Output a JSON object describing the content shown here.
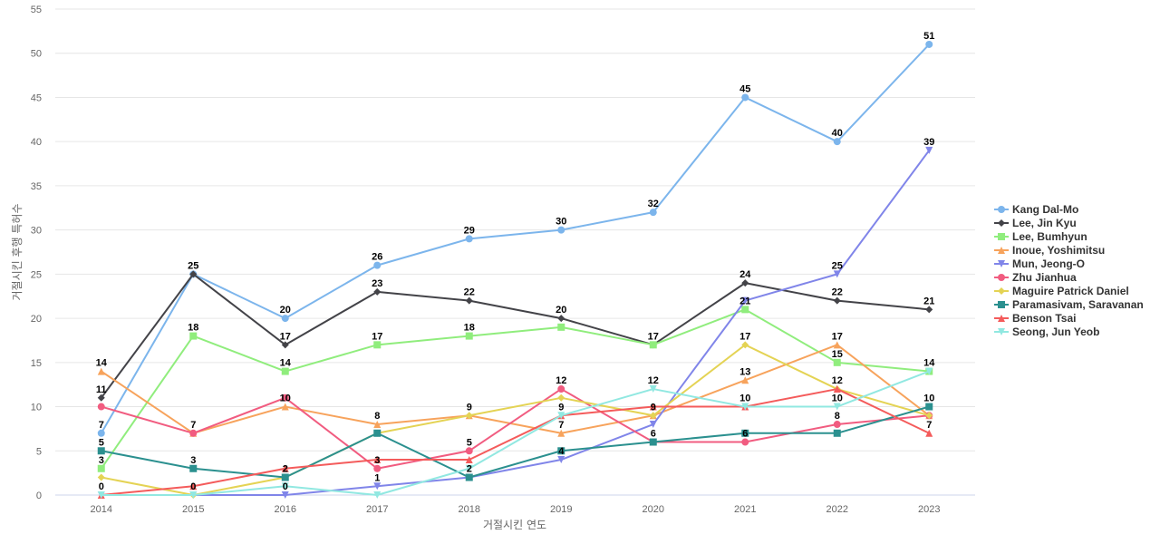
{
  "chart_data": {
    "type": "line",
    "title": "",
    "xlabel": "거절시킨 연도",
    "ylabel": "거절시킨 후행 특허수",
    "x": [
      "2014",
      "2015",
      "2016",
      "2017",
      "2018",
      "2019",
      "2020",
      "2021",
      "2022",
      "2023"
    ],
    "ylim": [
      0,
      55
    ],
    "yticks": [
      0,
      5,
      10,
      15,
      20,
      25,
      30,
      35,
      40,
      45,
      50,
      55
    ],
    "grid": true,
    "legend_position": "right",
    "series": [
      {
        "name": "Kang Dal-Mo",
        "color": "#7cb5ec",
        "marker": "circle",
        "values": [
          7,
          25,
          20,
          26,
          29,
          30,
          32,
          45,
          40,
          51
        ]
      },
      {
        "name": "Lee, Jin Kyu",
        "color": "#434348",
        "marker": "diamond",
        "values": [
          11,
          25,
          17,
          23,
          22,
          20,
          17,
          24,
          22,
          21
        ]
      },
      {
        "name": "Lee, Bumhyun",
        "color": "#90ed7d",
        "marker": "square",
        "values": [
          3,
          18,
          14,
          17,
          18,
          19,
          17,
          21,
          15,
          14
        ]
      },
      {
        "name": "Inoue, Yoshimitsu",
        "color": "#f7a35c",
        "marker": "triangle",
        "values": [
          14,
          7,
          10,
          8,
          9,
          7,
          9,
          13,
          17,
          9
        ]
      },
      {
        "name": "Mun, Jeong-O",
        "color": "#8085e9",
        "marker": "triangle-down",
        "values": [
          0,
          0,
          0,
          1,
          2,
          4,
          8,
          22,
          25,
          39
        ]
      },
      {
        "name": "Zhu Jianhua",
        "color": "#f15c80",
        "marker": "circle",
        "values": [
          10,
          7,
          11,
          3,
          5,
          12,
          6,
          6,
          8,
          9
        ]
      },
      {
        "name": "Maguire Patrick Daniel",
        "color": "#e4d354",
        "marker": "diamond",
        "values": [
          2,
          0,
          2,
          7,
          9,
          11,
          9,
          17,
          12,
          9
        ]
      },
      {
        "name": "Paramasivam, Saravanan",
        "color": "#2b908f",
        "marker": "square",
        "values": [
          5,
          3,
          2,
          7,
          2,
          5,
          6,
          7,
          7,
          10
        ]
      },
      {
        "name": "Benson Tsai",
        "color": "#f45b5b",
        "marker": "triangle",
        "values": [
          0,
          1,
          3,
          4,
          4,
          9,
          10,
          10,
          12,
          7
        ]
      },
      {
        "name": "Seong, Jun Yeob",
        "color": "#91e8e1",
        "marker": "triangle-down",
        "values": [
          0,
          0,
          1,
          0,
          3,
          9,
          12,
          10,
          10,
          14
        ]
      }
    ],
    "data_labels": [
      {
        "x": "2014",
        "text": "14"
      },
      {
        "x": "2014",
        "text": "11"
      },
      {
        "x": "2014",
        "text": "7"
      },
      {
        "x": "2014",
        "text": "5"
      },
      {
        "x": "2014",
        "text": "3"
      },
      {
        "x": "2014",
        "text": "0"
      },
      {
        "x": "2015",
        "text": "25"
      },
      {
        "x": "2015",
        "text": "18"
      },
      {
        "x": "2015",
        "text": "7"
      },
      {
        "x": "2015",
        "text": "3"
      },
      {
        "x": "2015",
        "text": "0"
      },
      {
        "x": "2016",
        "text": "20"
      },
      {
        "x": "2016",
        "text": "17"
      },
      {
        "x": "2016",
        "text": "14"
      },
      {
        "x": "2016",
        "text": "10"
      },
      {
        "x": "2016",
        "text": "2"
      },
      {
        "x": "2016",
        "text": "0"
      },
      {
        "x": "2017",
        "text": "26"
      },
      {
        "x": "2017",
        "text": "23"
      },
      {
        "x": "2017",
        "text": "17"
      },
      {
        "x": "2017",
        "text": "8"
      },
      {
        "x": "2017",
        "text": "3"
      },
      {
        "x": "2017",
        "text": "1"
      },
      {
        "x": "2018",
        "text": "29"
      },
      {
        "x": "2018",
        "text": "22"
      },
      {
        "x": "2018",
        "text": "18"
      },
      {
        "x": "2018",
        "text": "9"
      },
      {
        "x": "2018",
        "text": "5"
      },
      {
        "x": "2018",
        "text": "2"
      },
      {
        "x": "2019",
        "text": "30"
      },
      {
        "x": "2019",
        "text": "20"
      },
      {
        "x": "2019",
        "text": "12"
      },
      {
        "x": "2019",
        "text": "9"
      },
      {
        "x": "2019",
        "text": "7"
      },
      {
        "x": "2019",
        "text": "4"
      },
      {
        "x": "2020",
        "text": "32"
      },
      {
        "x": "2020",
        "text": "17"
      },
      {
        "x": "2020",
        "text": "12"
      },
      {
        "x": "2020",
        "text": "9"
      },
      {
        "x": "2020",
        "text": "6"
      },
      {
        "x": "2021",
        "text": "45"
      },
      {
        "x": "2021",
        "text": "24"
      },
      {
        "x": "2021",
        "text": "21"
      },
      {
        "x": "2021",
        "text": "17"
      },
      {
        "x": "2021",
        "text": "13"
      },
      {
        "x": "2021",
        "text": "10"
      },
      {
        "x": "2021",
        "text": "6"
      },
      {
        "x": "2022",
        "text": "40"
      },
      {
        "x": "2022",
        "text": "25"
      },
      {
        "x": "2022",
        "text": "22"
      },
      {
        "x": "2022",
        "text": "17"
      },
      {
        "x": "2022",
        "text": "15"
      },
      {
        "x": "2022",
        "text": "12"
      },
      {
        "x": "2022",
        "text": "10"
      },
      {
        "x": "2022",
        "text": "8"
      },
      {
        "x": "2023",
        "text": "51"
      },
      {
        "x": "2023",
        "text": "39"
      },
      {
        "x": "2023",
        "text": "21"
      },
      {
        "x": "2023",
        "text": "14"
      },
      {
        "x": "2023",
        "text": "10"
      },
      {
        "x": "2023",
        "text": "7"
      }
    ]
  }
}
